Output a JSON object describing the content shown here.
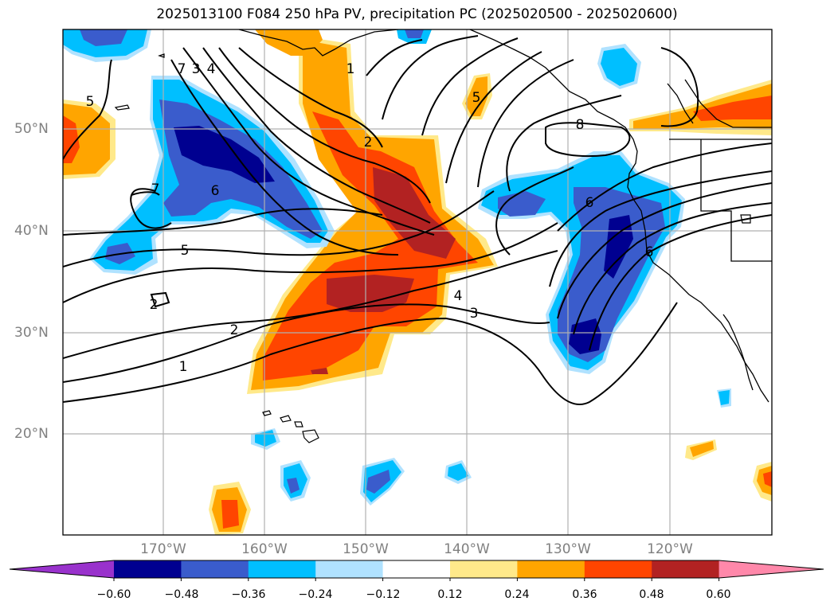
{
  "title": "2025013100 F084 250 hPa PV, precipitation PC (2025020500 - 2025020600)",
  "lat_labels": [
    "50°N",
    "40°N",
    "30°N",
    "20°N"
  ],
  "lon_labels": [
    "170°W",
    "160°W",
    "150°W",
    "140°W",
    "130°W",
    "120°W"
  ],
  "contour_labels": [
    "1",
    "2",
    "2",
    "3",
    "4",
    "5",
    "5",
    "5",
    "6",
    "6",
    "6",
    "7",
    "7",
    "8",
    "3",
    "4",
    "1",
    "2"
  ],
  "colorbar": {
    "ticks": [
      "−0.60",
      "−0.48",
      "−0.36",
      "−0.24",
      "−0.12",
      "0.12",
      "0.24",
      "0.36",
      "0.48",
      "0.60"
    ],
    "colors": [
      "#9932cc",
      "#000090",
      "#3a5ccc",
      "#00bfff",
      "#b0e2ff",
      "#ffffff",
      "#ffe98a",
      "#ffa500",
      "#ff4500",
      "#b22222",
      "#ff88aa"
    ]
  }
}
